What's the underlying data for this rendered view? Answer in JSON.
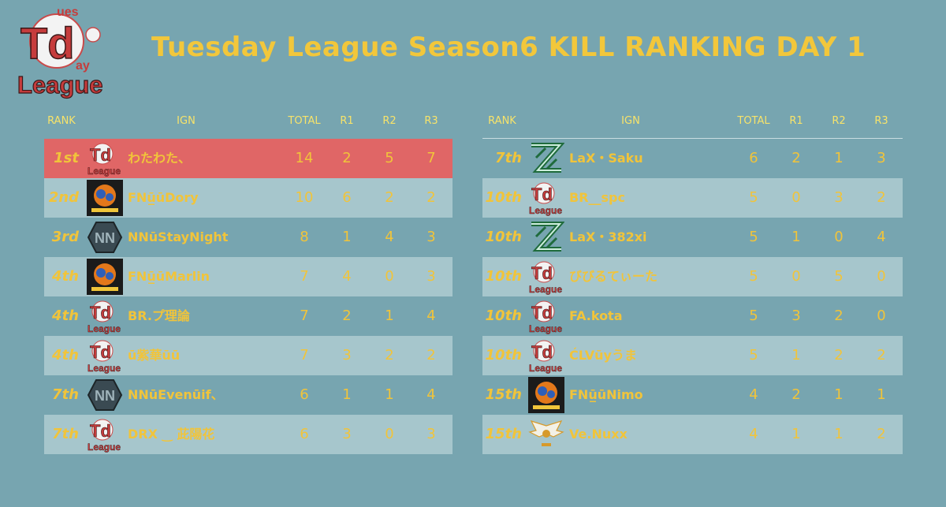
{
  "logo": {
    "name": "td-league-logo",
    "letters_main": "Td",
    "letters_top": "ues",
    "letters_right": "ay",
    "letters_bottom": "League"
  },
  "title": "Tuesday League Season6  KILL RANKING DAY 1",
  "colors": {
    "background": "#77a5b0",
    "alt_row": "#a6c6cc",
    "highlight_row": "#e06666",
    "text": "#f1c43a"
  },
  "headers": {
    "rank": "RANK",
    "ign": "IGN",
    "total": "TOTAL",
    "r1": "R1",
    "r2": "R2",
    "r3": "R3"
  },
  "left_rows": [
    {
      "rank": "1st",
      "icon": "td-league-icon",
      "ign": "わたわた、",
      "total": "14",
      "r1": "2",
      "r2": "5",
      "r3": "7"
    },
    {
      "rank": "2nd",
      "icon": "fighting-team-icon",
      "ign": "FNū̲ūDory",
      "total": "10",
      "r1": "6",
      "r2": "2",
      "r3": "2"
    },
    {
      "rank": "3rd",
      "icon": "nn-team-icon",
      "ign": "NNūStayNight",
      "total": "8",
      "r1": "1",
      "r2": "4",
      "r3": "3"
    },
    {
      "rank": "4th",
      "icon": "fighting-team-icon",
      "ign": "FNū̲ūMarlin",
      "total": "7",
      "r1": "4",
      "r2": "0",
      "r3": "3"
    },
    {
      "rank": "4th",
      "icon": "td-league-icon",
      "ign": "BR.プ理論",
      "total": "7",
      "r1": "2",
      "r2": "1",
      "r3": "4"
    },
    {
      "rank": "4th",
      "icon": "td-league-icon",
      "ign": "ū紫華ūū",
      "total": "7",
      "r1": "3",
      "r2": "2",
      "r3": "2"
    },
    {
      "rank": "7th",
      "icon": "nn-team-icon",
      "ign": "NNūEvenūif、",
      "total": "6",
      "r1": "1",
      "r2": "1",
      "r3": "4"
    },
    {
      "rank": "7th",
      "icon": "td-league-icon",
      "ign": "DRX ‿ 茈陽花",
      "total": "6",
      "r1": "3",
      "r2": "0",
      "r3": "3"
    }
  ],
  "right_rows": [
    {
      "rank": "7th",
      "icon": "lax-team-icon",
      "ign": "LaX・Saku",
      "total": "6",
      "r1": "2",
      "r2": "1",
      "r3": "3"
    },
    {
      "rank": "10th",
      "icon": "td-league-icon",
      "ign": "BR__spc",
      "total": "5",
      "r1": "0",
      "r2": "3",
      "r3": "2"
    },
    {
      "rank": "10th",
      "icon": "lax-team-icon",
      "ign": "LaX・382xi",
      "total": "5",
      "r1": "1",
      "r2": "0",
      "r3": "4"
    },
    {
      "rank": "10th",
      "icon": "td-league-icon",
      "ign": "びびるてぃーた",
      "total": "5",
      "r1": "0",
      "r2": "5",
      "r3": "0"
    },
    {
      "rank": "10th",
      "icon": "td-league-icon",
      "ign": "FA.kota",
      "total": "5",
      "r1": "3",
      "r2": "2",
      "r3": "0"
    },
    {
      "rank": "10th",
      "icon": "td-league-icon",
      "ign": "ĆLVūyうま",
      "total": "5",
      "r1": "1",
      "r2": "2",
      "r3": "2"
    },
    {
      "rank": "15th",
      "icon": "fighting-team-icon",
      "ign": "FNū̲ūNimo",
      "total": "4",
      "r1": "2",
      "r2": "1",
      "r3": "1"
    },
    {
      "rank": "15th",
      "icon": "wing-team-icon",
      "ign": "Ve.Nuxx",
      "total": "4",
      "r1": "1",
      "r2": "1",
      "r3": "2"
    }
  ]
}
